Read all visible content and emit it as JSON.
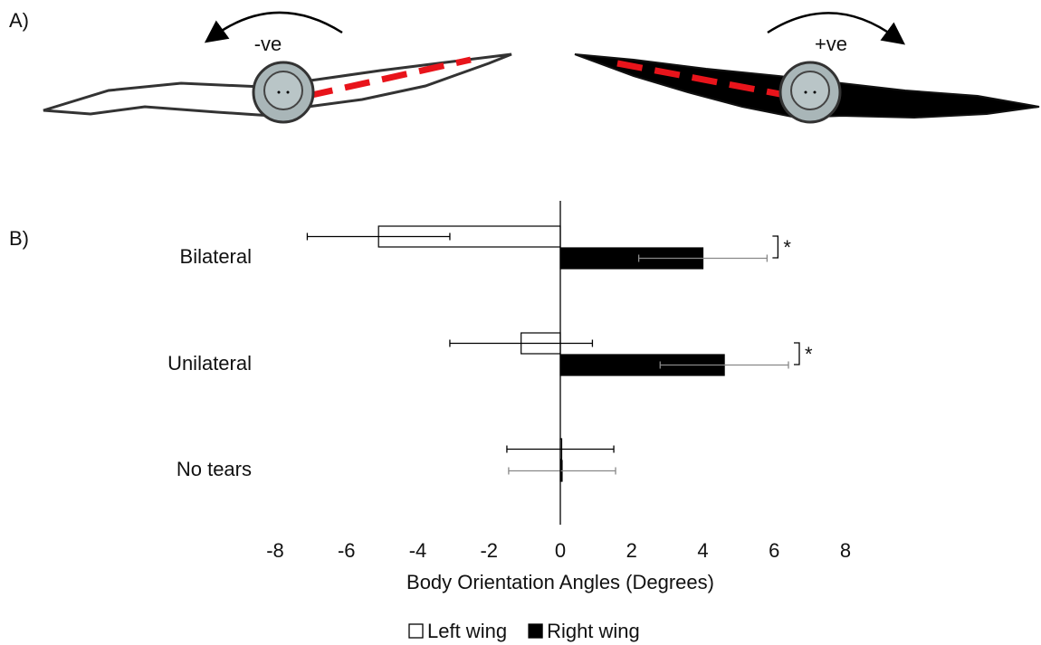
{
  "figure": {
    "panel_a_label": "A)",
    "panel_b_label": "B)",
    "rotation_labels": [
      "-ve",
      "+ve"
    ]
  },
  "chart_data": {
    "type": "hbar",
    "categories": [
      "Bilateral",
      "Unilateral",
      "No tears"
    ],
    "series": [
      {
        "name": "Left wing",
        "color": "#ffffff",
        "error_color": "#000000",
        "values": [
          -5.1,
          -1.1,
          0
        ],
        "errors": [
          2.0,
          2.0,
          1.5
        ]
      },
      {
        "name": "Right wing",
        "color": "#000000",
        "error_color": "#888888",
        "values": [
          4.0,
          4.6,
          0.05
        ],
        "errors": [
          1.8,
          1.8,
          1.5
        ]
      }
    ],
    "significance": [
      "*",
      "*",
      null
    ],
    "x_label": "Body Orientation Angles (Degrees)",
    "xlim": [
      -8,
      8
    ],
    "xticks": [
      -8,
      -6,
      -4,
      -2,
      0,
      2,
      4,
      6,
      8
    ],
    "legend": "bottom"
  }
}
